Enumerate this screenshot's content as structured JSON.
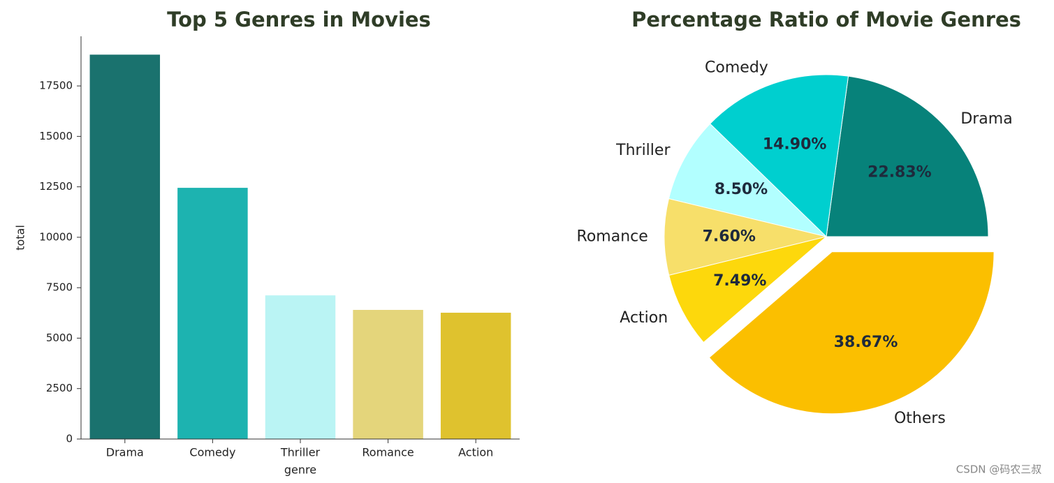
{
  "chart_data": [
    {
      "type": "bar",
      "title": "Top 5 Genres in Movies",
      "x_label": "genre",
      "y_label": "total",
      "categories": [
        "Drama",
        "Comedy",
        "Thriller",
        "Romance",
        "Action"
      ],
      "values": [
        19050,
        12450,
        7120,
        6400,
        6260
      ],
      "colors": [
        "#1a726e",
        "#1db3b0",
        "#baf4f4",
        "#e4d57b",
        "#dfc22e"
      ],
      "ylim": [
        0,
        19960
      ],
      "yticks": [
        0,
        2500,
        5000,
        7500,
        10000,
        12500,
        15000,
        17500
      ]
    },
    {
      "type": "pie",
      "title": "Percentage Ratio of Movie Genres",
      "categories": [
        "Drama",
        "Comedy",
        "Thriller",
        "Romance",
        "Action",
        "Others"
      ],
      "values": [
        22.83,
        14.9,
        8.5,
        7.6,
        7.49,
        38.67
      ],
      "value_labels": [
        "22.83%",
        "14.90%",
        "8.50%",
        "7.60%",
        "7.49%",
        "38.67%"
      ],
      "colors": [
        "#07827a",
        "#00cfcf",
        "#b2ffff",
        "#f7df6a",
        "#fdd80c",
        "#fbbf00"
      ],
      "explode": [
        0,
        0,
        0,
        0,
        0,
        0.1
      ]
    }
  ],
  "watermark": "CSDN @码农三叔"
}
